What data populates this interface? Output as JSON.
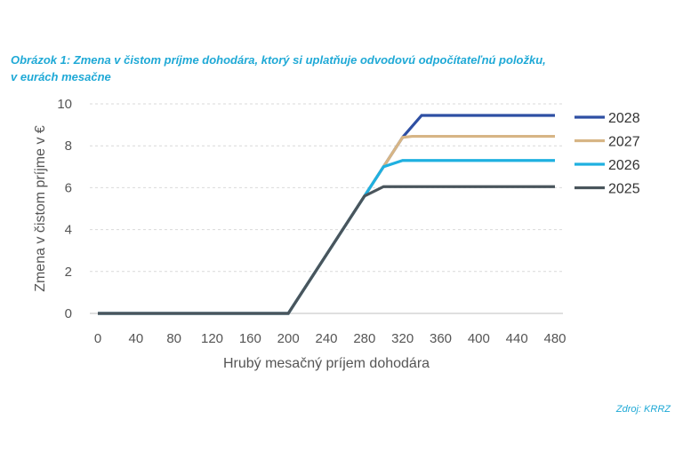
{
  "caption": {
    "line1": "Obrázok 1: Zmena v čistom príjme dohodára, ktorý si uplatňuje odvodovú odpočítateľnú položku,",
    "line2": "v eurách mesačne"
  },
  "source": "Zdroj: KRRZ",
  "chart_data": {
    "type": "line",
    "title": "",
    "xlabel": "Hrubý mesačný príjem dohodára",
    "ylabel": "Zmena v čistom príjme v €",
    "xlim": [
      0,
      480
    ],
    "ylim": [
      0,
      10
    ],
    "x_ticks": [
      0,
      40,
      80,
      120,
      160,
      200,
      240,
      280,
      320,
      360,
      400,
      440,
      480
    ],
    "y_ticks": [
      0,
      2,
      4,
      6,
      8,
      10
    ],
    "grid": true,
    "legend_position": "right",
    "series": [
      {
        "name": "2028",
        "color": "#2e4fa3",
        "points": [
          [
            0,
            0
          ],
          [
            200,
            0
          ],
          [
            280,
            5.6
          ],
          [
            320,
            8.4
          ],
          [
            340,
            9.45
          ],
          [
            480,
            9.45
          ]
        ]
      },
      {
        "name": "2027",
        "color": "#d7b585",
        "points": [
          [
            0,
            0
          ],
          [
            200,
            0
          ],
          [
            280,
            5.6
          ],
          [
            320,
            8.4
          ],
          [
            330,
            8.45
          ],
          [
            480,
            8.45
          ]
        ]
      },
      {
        "name": "2026",
        "color": "#1fb0e0",
        "points": [
          [
            0,
            0
          ],
          [
            200,
            0
          ],
          [
            280,
            5.6
          ],
          [
            300,
            7.0
          ],
          [
            320,
            7.3
          ],
          [
            480,
            7.3
          ]
        ]
      },
      {
        "name": "2025",
        "color": "#4a555c",
        "points": [
          [
            0,
            0
          ],
          [
            200,
            0
          ],
          [
            280,
            5.6
          ],
          [
            300,
            6.05
          ],
          [
            480,
            6.05
          ]
        ]
      }
    ]
  }
}
